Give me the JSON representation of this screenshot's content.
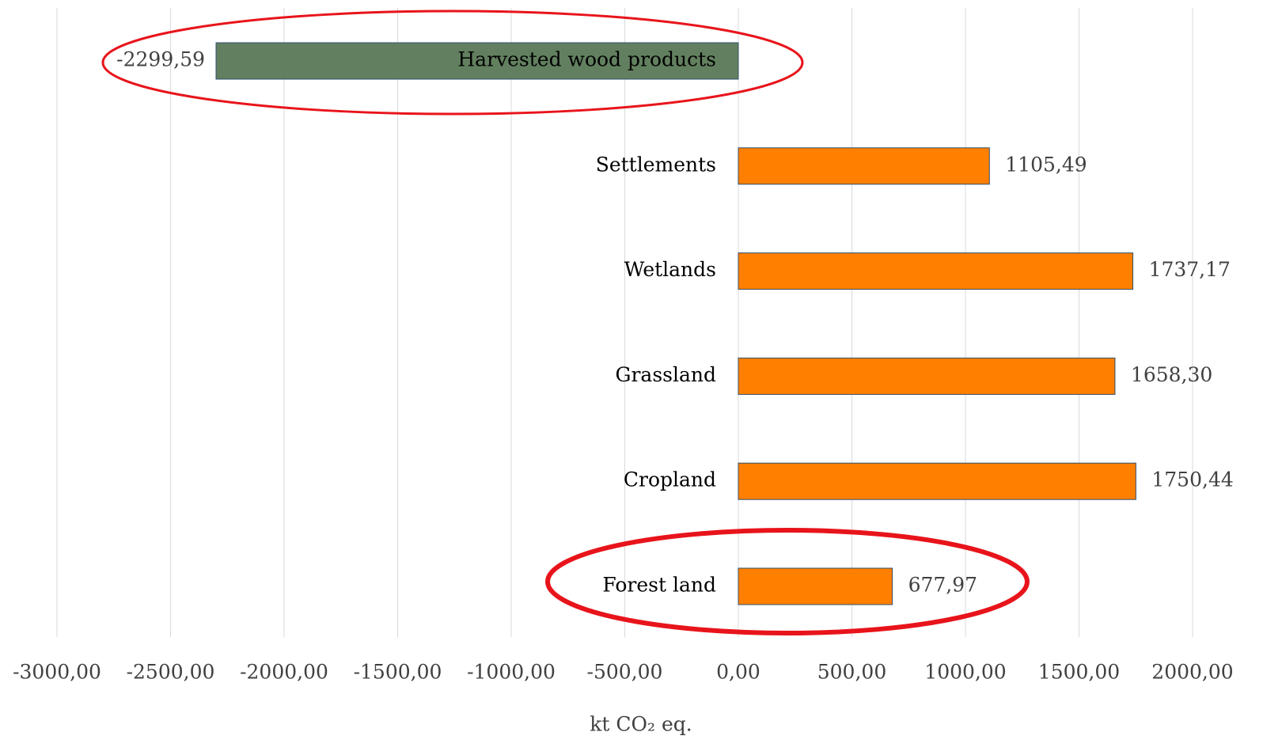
{
  "chart_data": {
    "type": "hbar",
    "categories": [
      "Harvested wood products",
      "Settlements",
      "Wetlands",
      "Grassland",
      "Cropland",
      "Forest land"
    ],
    "values": [
      -2299.59,
      1105.49,
      1737.17,
      1658.3,
      1750.44,
      677.97
    ],
    "value_labels": [
      "-2299,59",
      "1105,49",
      "1737,17",
      "1658,30",
      "1750,44",
      "677,97"
    ],
    "colors": [
      "#62805f",
      "#ff7f00",
      "#ff7f00",
      "#ff7f00",
      "#ff7f00",
      "#ff7f00"
    ],
    "xlabel": "kt CO₂ eq.",
    "xlim": [
      -3000,
      2000
    ],
    "xticks": [
      {
        "value": -3000,
        "label": "-3000,00"
      },
      {
        "value": -2500,
        "label": "-2500,00"
      },
      {
        "value": -2000,
        "label": "-2000,00"
      },
      {
        "value": -1500,
        "label": "-1500,00"
      },
      {
        "value": -1000,
        "label": "-1000,00"
      },
      {
        "value": -500,
        "label": "-500,00"
      },
      {
        "value": 0,
        "label": "0,00"
      },
      {
        "value": 500,
        "label": "500,00"
      },
      {
        "value": 1000,
        "label": "1000,00"
      },
      {
        "value": 1500,
        "label": "1500,00"
      },
      {
        "value": 2000,
        "label": "2000,00"
      }
    ],
    "grid": true
  }
}
